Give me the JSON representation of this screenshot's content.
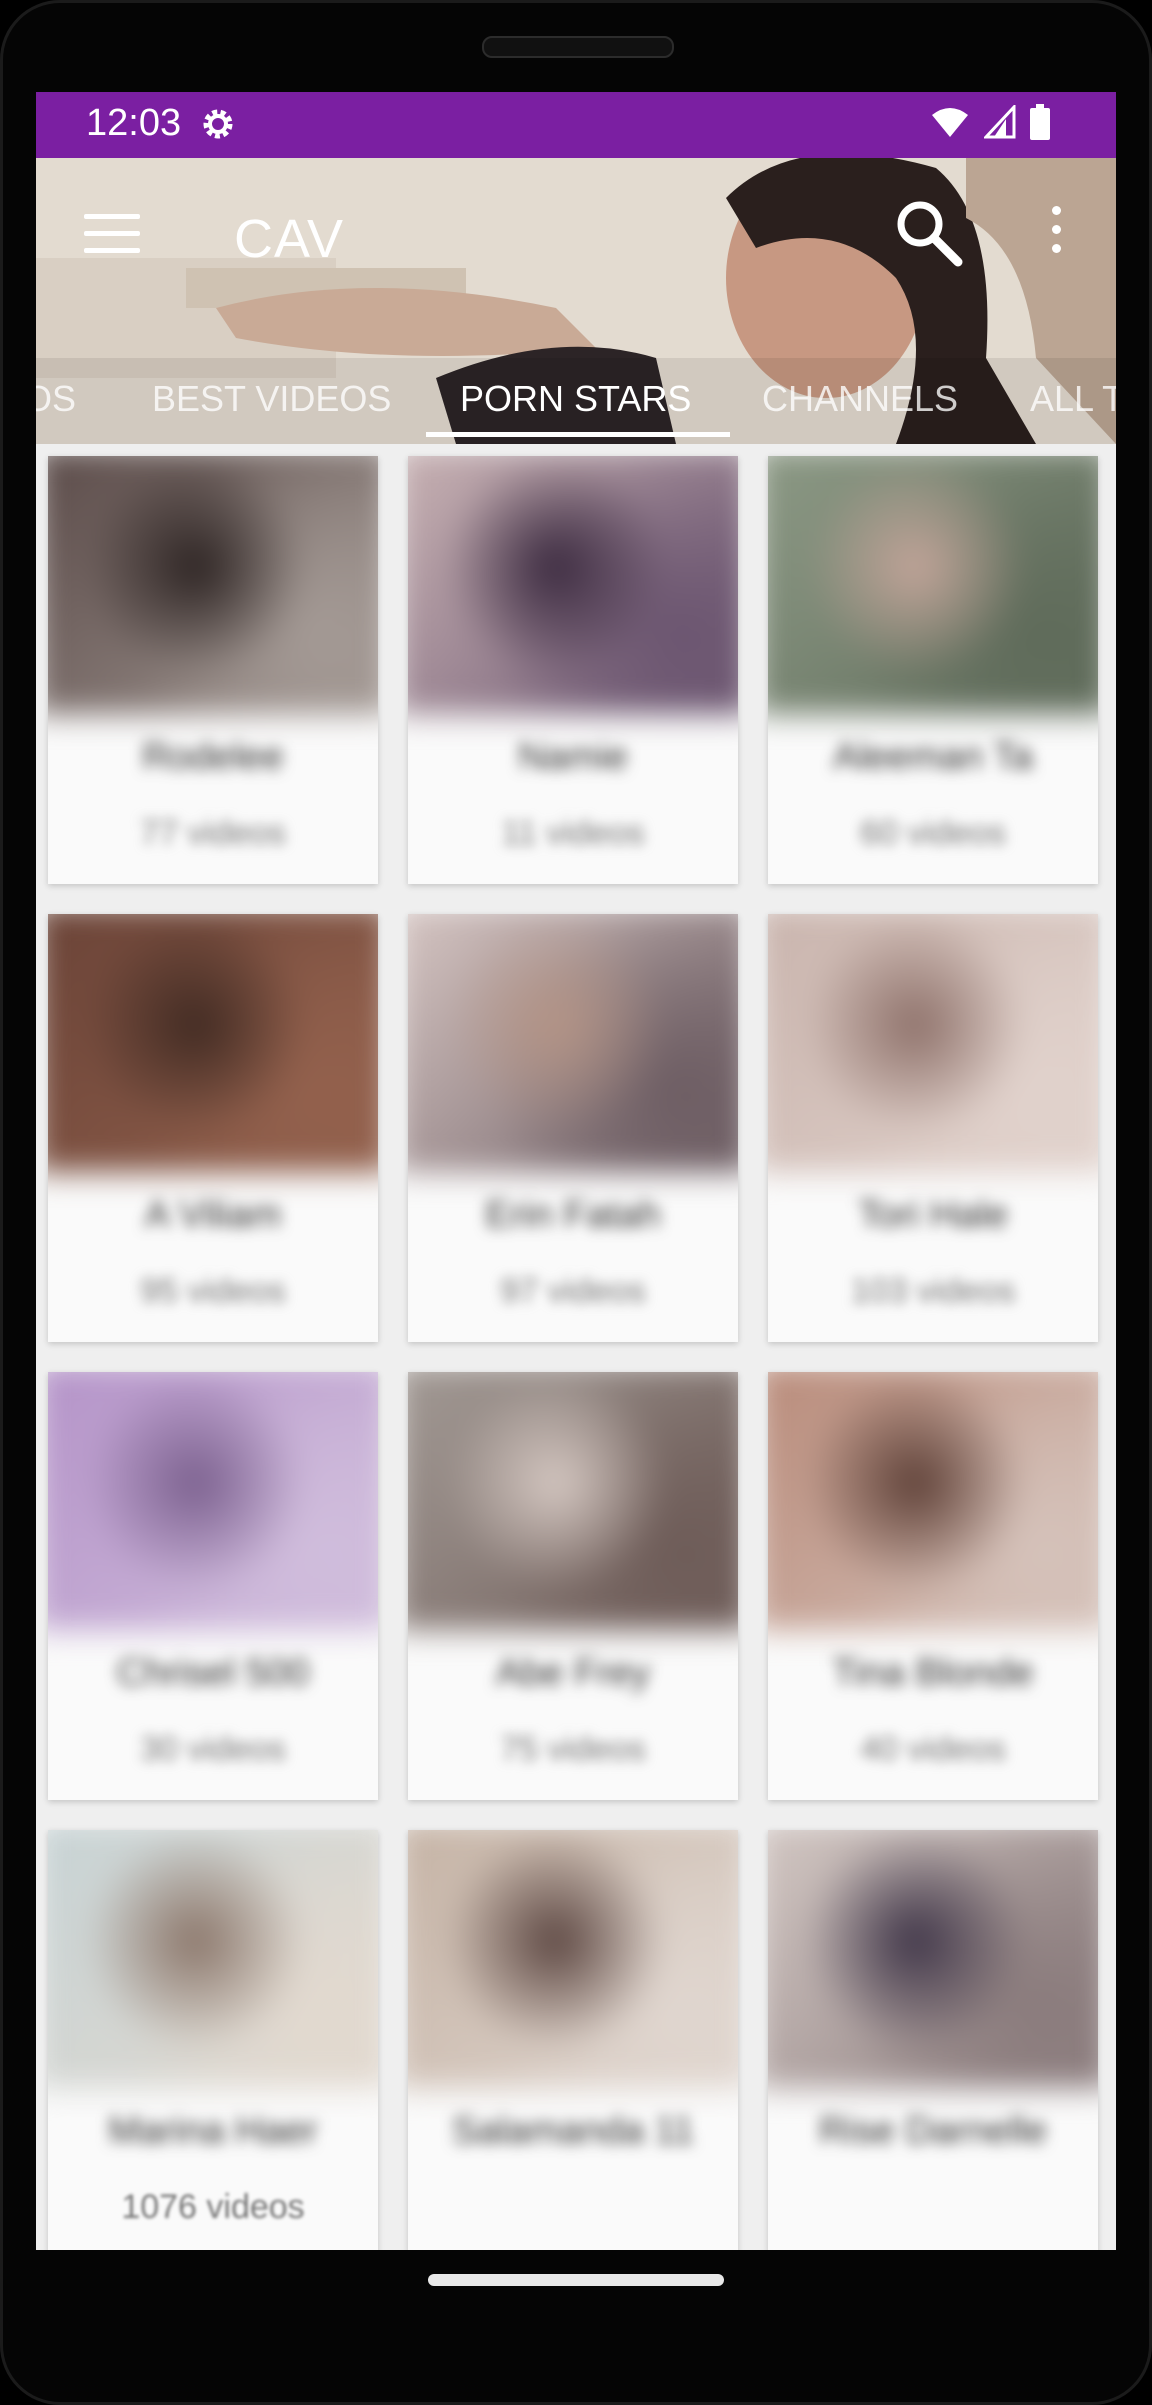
{
  "status": {
    "time": "12:03"
  },
  "app": {
    "title": "CAV"
  },
  "tabs": [
    {
      "label": "OS"
    },
    {
      "label": "BEST VIDEOS"
    },
    {
      "label": "PORN STARS"
    },
    {
      "label": "CHANNELS"
    },
    {
      "label": "ALL T"
    }
  ],
  "active_tab": "PORN STARS",
  "colors": {
    "status_bar": "#7b1fa2",
    "screen_bg": "#efefef"
  },
  "cards": [
    {
      "name": "Rodelee",
      "count": "77 videos",
      "colors": [
        "#5a4a48",
        "#2b2221",
        "#a49a95"
      ]
    },
    {
      "name": "Namie",
      "count": "11 videos",
      "colors": [
        "#c9b3b4",
        "#3b2a3f",
        "#6b5570"
      ]
    },
    {
      "name": "Aleeman Ta",
      "count": "60 videos",
      "colors": [
        "#8d9a86",
        "#c3a59a",
        "#5f6b5a"
      ]
    },
    {
      "name": "A Viliam",
      "count": "95 videos",
      "colors": [
        "#6a4337",
        "#402a22",
        "#93614d"
      ]
    },
    {
      "name": "Erin Fatah",
      "count": "97 videos",
      "colors": [
        "#d7c7c4",
        "#b49486",
        "#6d5d63"
      ]
    },
    {
      "name": "Tori Hale",
      "count": "103 videos",
      "colors": [
        "#c9b4ad",
        "#8d7069",
        "#e1d2cc"
      ]
    },
    {
      "name": "Chrisel 500",
      "count": "30 videos",
      "colors": [
        "#b493c8",
        "#7a5f8d",
        "#d0bddc"
      ]
    },
    {
      "name": "Abe Frey",
      "count": "75 videos",
      "colors": [
        "#a39b96",
        "#d6c9c3",
        "#6e5c58"
      ]
    },
    {
      "name": "Tina Blonde",
      "count": "40 videos",
      "colors": [
        "#b98b7a",
        "#5d3f36",
        "#d5c2ba"
      ]
    },
    {
      "name": "Marina Haer",
      "count": "1076 videos",
      "colors": [
        "#c7d3d5",
        "#8a7569",
        "#e2d9cf"
      ]
    },
    {
      "name": "Salamanda 11",
      "count": "",
      "colors": [
        "#c5b3a5",
        "#5b4540",
        "#e0d6cf"
      ]
    },
    {
      "name": "Rise Darnelle",
      "count": "",
      "colors": [
        "#d3c8c4",
        "#3f3548",
        "#8a7b7c"
      ]
    }
  ]
}
